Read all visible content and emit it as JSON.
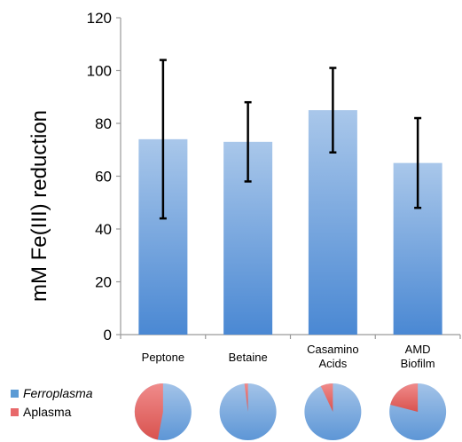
{
  "chart_data": {
    "type": "bar",
    "ylabel": "mM  Fe(III) reduction",
    "ylim": [
      0,
      120
    ],
    "yticks": [
      "0",
      "20",
      "40",
      "60",
      "80",
      "100",
      "120"
    ],
    "categories": [
      {
        "lines": [
          "Peptone"
        ]
      },
      {
        "lines": [
          "Betaine"
        ]
      },
      {
        "lines": [
          "Casamino",
          "Acids"
        ]
      },
      {
        "lines": [
          "AMD",
          "Biofilm"
        ]
      }
    ],
    "values": [
      74,
      73,
      85,
      65
    ],
    "error_low": [
      44,
      58,
      69,
      48
    ],
    "error_high": [
      104,
      88,
      101,
      82
    ],
    "bar_colors": {
      "light": "#a9c7ea",
      "dark": "#4a88d3"
    },
    "grid": false,
    "legend": {
      "placement": "bottom-left",
      "entries": [
        {
          "label": "Ferroplasma",
          "color": "#5b9bd5",
          "italic": true
        },
        {
          "label": "Aplasma",
          "color": "#e8696b",
          "italic": false
        }
      ]
    },
    "pies": [
      {
        "category": "Peptone",
        "ferroplasma": 0.53,
        "aplasma": 0.47
      },
      {
        "category": "Betaine",
        "ferroplasma": 0.98,
        "aplasma": 0.02
      },
      {
        "category": "Casamino Acids",
        "ferroplasma": 0.93,
        "aplasma": 0.07
      },
      {
        "category": "AMD Biofilm",
        "ferroplasma": 0.79,
        "aplasma": 0.21
      }
    ]
  }
}
